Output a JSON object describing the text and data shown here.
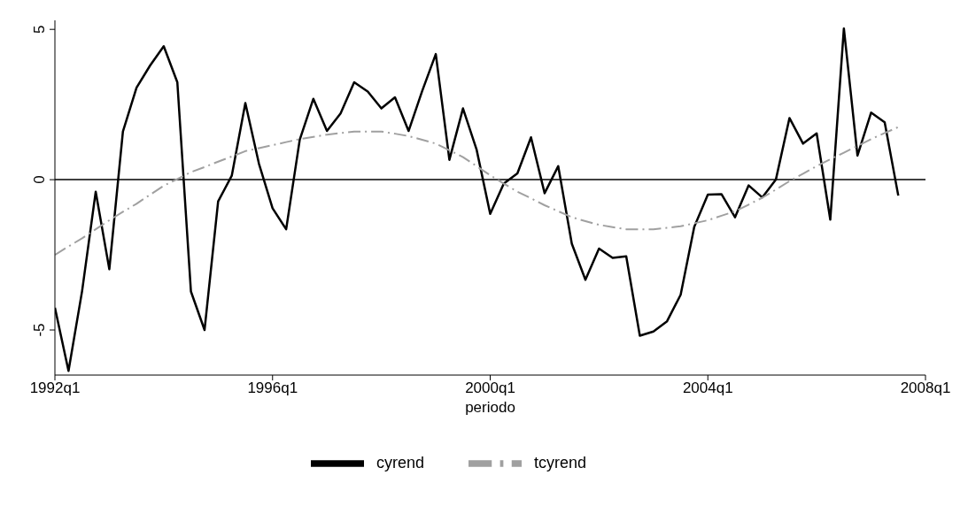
{
  "chart_data": {
    "type": "line",
    "xlabel": "periodo",
    "categories": [
      "1992q1",
      null,
      null,
      null,
      null,
      null,
      null,
      null,
      null,
      null,
      null,
      null,
      null,
      null,
      null,
      null,
      "1996q1",
      null,
      null,
      null,
      null,
      null,
      null,
      null,
      null,
      null,
      null,
      null,
      null,
      null,
      null,
      null,
      "2000q1",
      null,
      null,
      null,
      null,
      null,
      null,
      null,
      null,
      null,
      null,
      null,
      null,
      null,
      null,
      null,
      "2004q1",
      null,
      null,
      null,
      null,
      null,
      null,
      null,
      null,
      null,
      null,
      null,
      null,
      null,
      null,
      null,
      "2008q1"
    ],
    "ylim": [
      -6.5,
      5.3
    ],
    "yticks": [
      -5,
      0,
      5
    ],
    "grid": false,
    "legend": "bottom",
    "marker": "none",
    "ref_lines": [
      {
        "axis": "y",
        "value": 0,
        "color": "#000000"
      }
    ],
    "series": [
      {
        "name": "cyrend",
        "color": "#000000",
        "line_style": "solid",
        "values": [
          -4.26,
          -6.36,
          -3.7,
          -0.4,
          -2.98,
          1.6,
          3.06,
          3.8,
          4.44,
          3.24,
          -3.72,
          -5.0,
          -0.72,
          0.13,
          2.55,
          0.53,
          -0.95,
          -1.65,
          1.33,
          2.69,
          1.62,
          2.2,
          3.24,
          2.93,
          2.37,
          2.74,
          1.62,
          2.95,
          4.18,
          0.66,
          2.37,
          1.0,
          -1.14,
          -0.13,
          0.21,
          1.41,
          -0.45,
          0.45,
          -2.13,
          -3.33,
          -2.29,
          -2.6,
          -2.55,
          -5.19,
          -5.05,
          -4.71,
          -3.83,
          -1.57,
          -0.5,
          -0.48,
          -1.25,
          -0.19,
          -0.59,
          0.0,
          2.05,
          1.2,
          1.54,
          -1.33,
          5.03,
          0.8,
          2.23,
          1.91,
          -0.53,
          null,
          null
        ]
      },
      {
        "name": "tcyrend",
        "color": "#a0a0a0",
        "line_style": "dashed",
        "values": [
          -2.5,
          -2.22,
          -1.95,
          -1.65,
          -1.35,
          -1.07,
          -0.8,
          -0.5,
          -0.2,
          0.02,
          0.25,
          0.42,
          0.6,
          0.77,
          0.95,
          1.05,
          1.15,
          1.25,
          1.35,
          1.42,
          1.5,
          1.55,
          1.6,
          1.6,
          1.6,
          1.53,
          1.45,
          1.33,
          1.2,
          0.98,
          0.75,
          0.45,
          0.15,
          -0.13,
          -0.4,
          -0.62,
          -0.85,
          -1.05,
          -1.25,
          -1.38,
          -1.5,
          -1.58,
          -1.65,
          -1.65,
          -1.65,
          -1.6,
          -1.55,
          -1.45,
          -1.35,
          -1.2,
          -1.05,
          -0.83,
          -0.6,
          -0.33,
          -0.05,
          0.2,
          0.45,
          0.68,
          0.9,
          1.12,
          1.35,
          1.55,
          1.75,
          null,
          null
        ]
      }
    ]
  }
}
